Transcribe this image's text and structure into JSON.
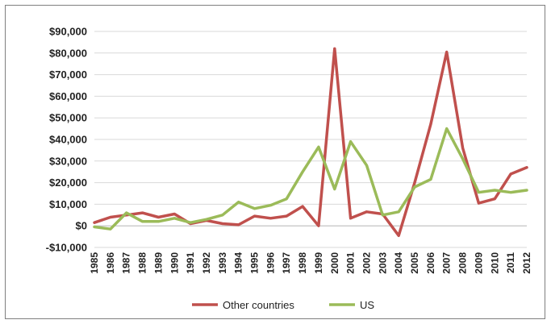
{
  "chart_data": {
    "type": "line",
    "title": "",
    "xlabel": "",
    "ylabel": "",
    "x": [
      "1985",
      "1986",
      "1987",
      "1988",
      "1989",
      "1990",
      "1991",
      "1992",
      "1993",
      "1994",
      "1995",
      "1996",
      "1997",
      "1998",
      "1999",
      "2000",
      "2001",
      "2002",
      "2003",
      "2004",
      "2005",
      "2006",
      "2007",
      "2008",
      "2009",
      "2010",
      "2011",
      "2012"
    ],
    "ylim": [
      -10000,
      90000
    ],
    "y_ticks": [
      {
        "value": 90000,
        "label": "$90,000"
      },
      {
        "value": 80000,
        "label": "$80,000"
      },
      {
        "value": 70000,
        "label": "$70,000"
      },
      {
        "value": 60000,
        "label": "$60,000"
      },
      {
        "value": 50000,
        "label": "$50,000"
      },
      {
        "value": 40000,
        "label": "$40,000"
      },
      {
        "value": 30000,
        "label": "$30,000"
      },
      {
        "value": 20000,
        "label": "$20,000"
      },
      {
        "value": 10000,
        "label": "$10,000"
      },
      {
        "value": 0,
        "label": "$0"
      },
      {
        "value": -10000,
        "label": "-$10,000"
      }
    ],
    "grid": true,
    "legend_position": "bottom",
    "series": [
      {
        "name": "Other countries",
        "color": "#c0504d",
        "values": [
          1500,
          4000,
          5000,
          6000,
          4000,
          5500,
          1000,
          2500,
          1000,
          500,
          4500,
          3500,
          4500,
          9000,
          0,
          82000,
          3500,
          6500,
          5500,
          -4500,
          20000,
          47000,
          80500,
          36000,
          10500,
          12500,
          24000,
          27000
        ]
      },
      {
        "name": "US",
        "color": "#9bbb59",
        "values": [
          -500,
          -1500,
          6000,
          2000,
          2000,
          3500,
          1500,
          3000,
          5000,
          11000,
          8000,
          9500,
          12500,
          25000,
          36500,
          17000,
          39000,
          28000,
          5000,
          6500,
          18000,
          21500,
          45000,
          31000,
          15500,
          16500,
          15500,
          16500
        ]
      }
    ],
    "negative_tick_color": "#e46c0a"
  }
}
